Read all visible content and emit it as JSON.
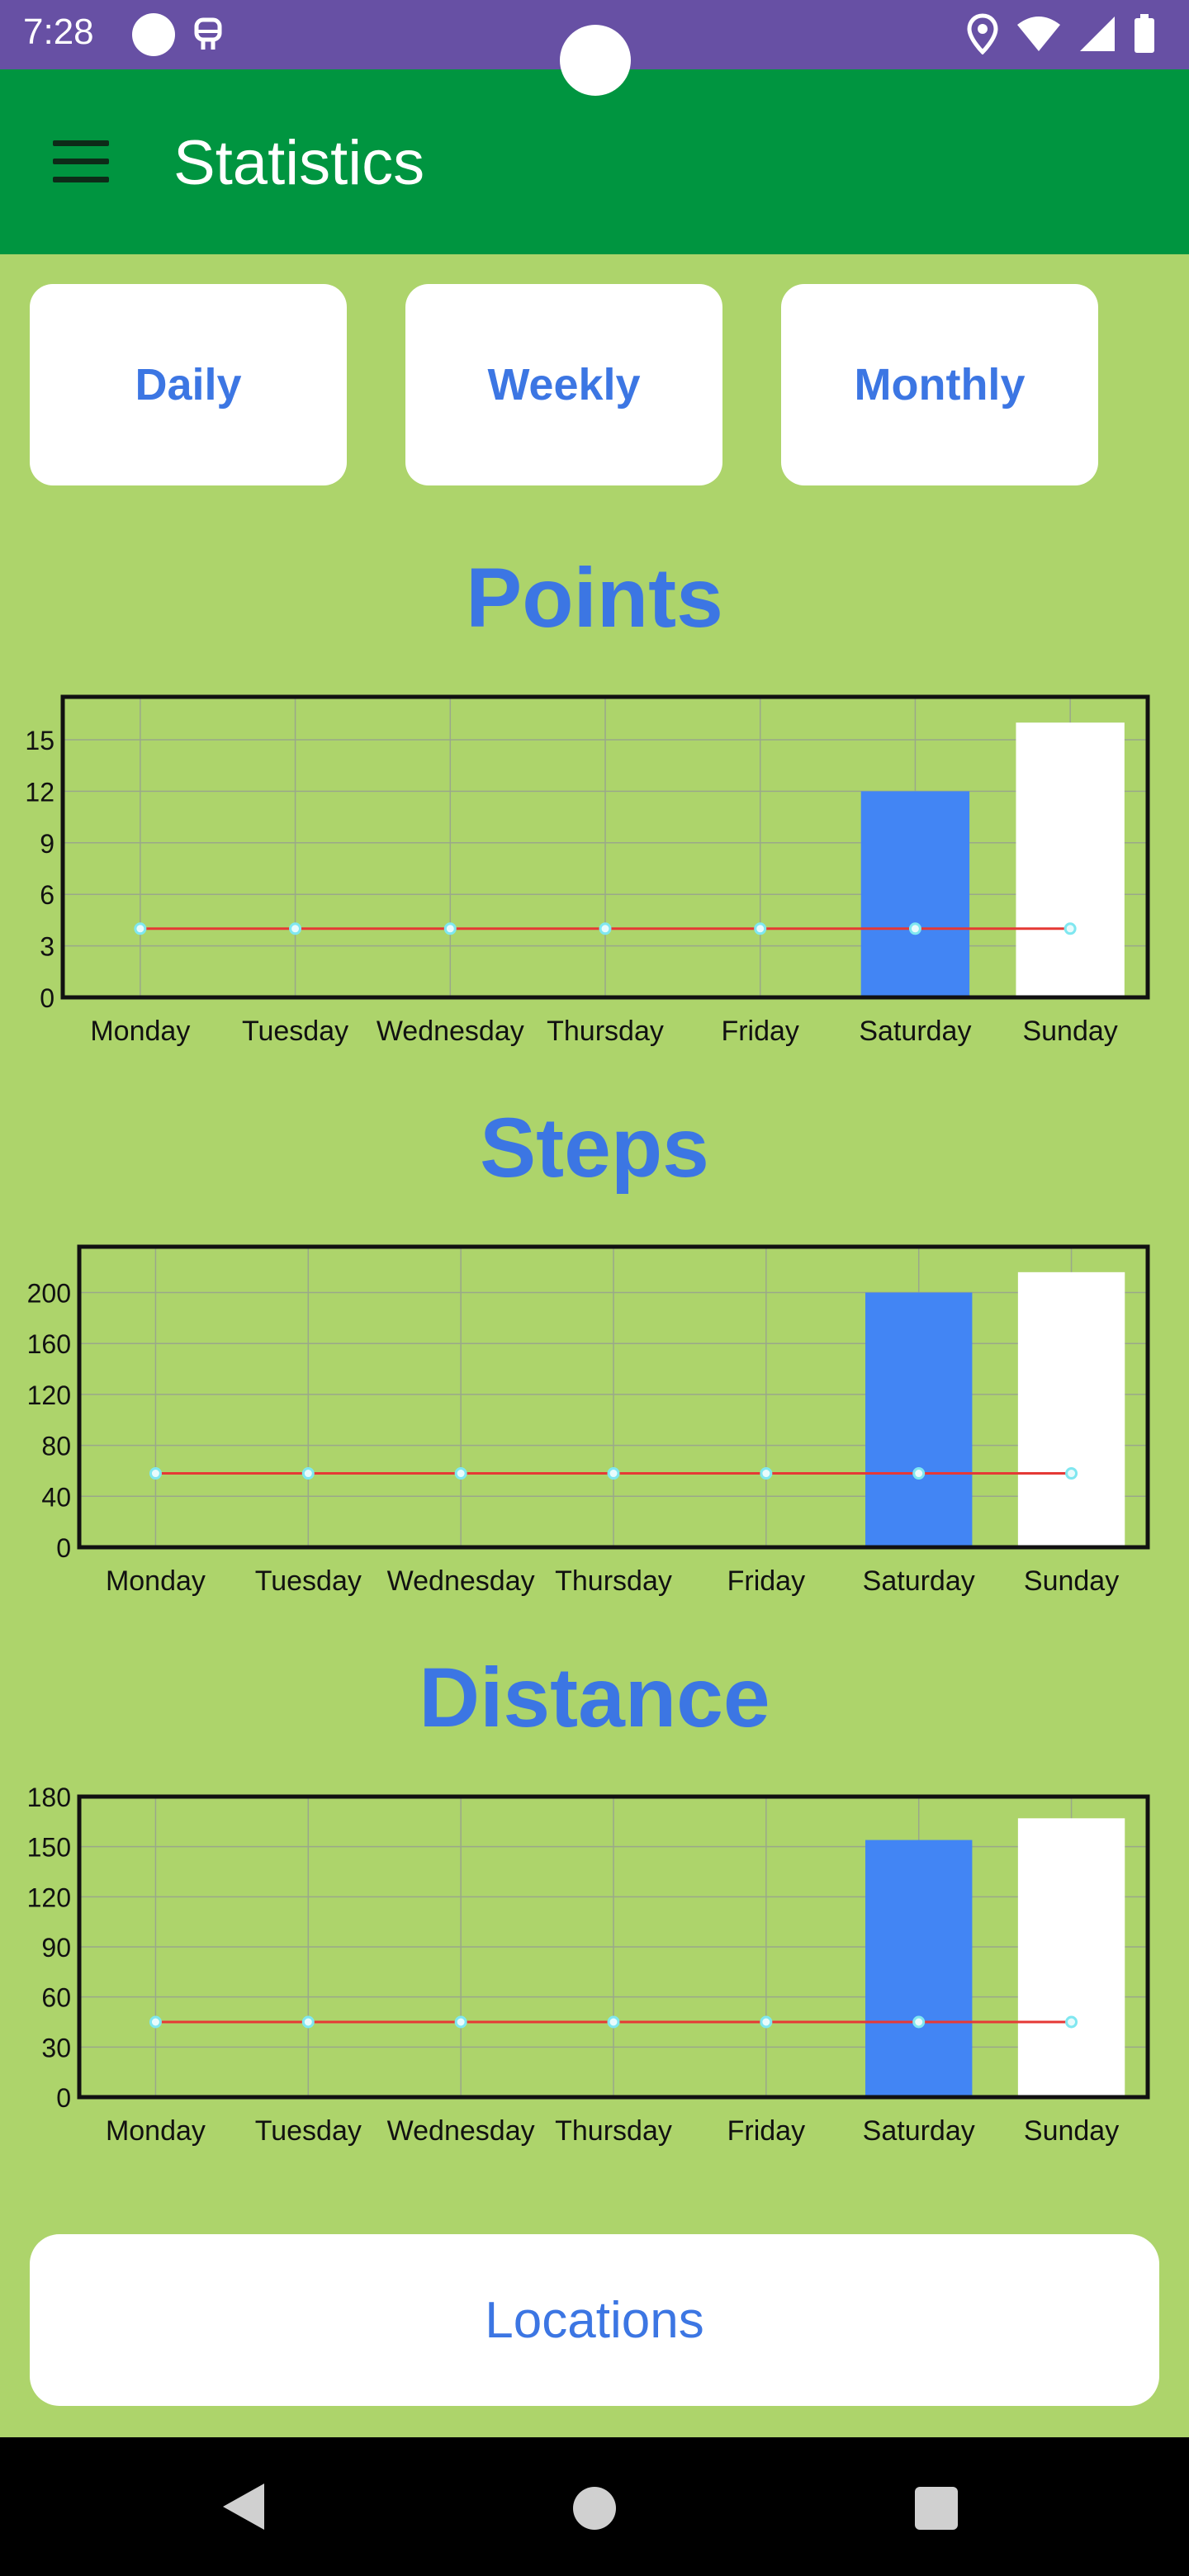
{
  "status_bar": {
    "time": "7:28",
    "left_icons": [
      "dot-icon",
      "robot-icon"
    ],
    "right_icons": [
      "location-icon",
      "wifi-icon",
      "signal-icon",
      "battery-icon"
    ]
  },
  "app_bar": {
    "title": "Statistics",
    "menu_icon": "hamburger-menu-icon"
  },
  "range_buttons": [
    {
      "id": "daily",
      "label": "Daily"
    },
    {
      "id": "weekly",
      "label": "Weekly"
    },
    {
      "id": "monthly",
      "label": "Monthly"
    }
  ],
  "chart_data": [
    {
      "type": "bar",
      "title": "Points",
      "categories": [
        "Monday",
        "Tuesday",
        "Wednesday",
        "Thursday",
        "Friday",
        "Saturday",
        "Sunday"
      ],
      "yticks": [
        0,
        3,
        6,
        9,
        12,
        15
      ],
      "ylim": [
        0,
        17.5
      ],
      "series": [
        {
          "kind": "bar",
          "values": [
            0,
            0,
            0,
            0,
            0,
            12,
            16
          ],
          "colors": [
            "#4285f4",
            "#4285f4",
            "#4285f4",
            "#4285f4",
            "#4285f4",
            "#4285f4",
            "#ffffff"
          ]
        },
        {
          "kind": "line",
          "values": [
            4,
            4,
            4,
            4,
            4,
            4,
            4
          ],
          "color": "#e53935"
        }
      ],
      "grid": true
    },
    {
      "type": "bar",
      "title": "Steps",
      "categories": [
        "Monday",
        "Tuesday",
        "Wednesday",
        "Thursday",
        "Friday",
        "Saturday",
        "Sunday"
      ],
      "yticks": [
        0,
        40,
        80,
        120,
        160,
        200
      ],
      "ylim": [
        0,
        236
      ],
      "series": [
        {
          "kind": "bar",
          "values": [
            0,
            0,
            0,
            0,
            0,
            200,
            216
          ],
          "colors": [
            "#4285f4",
            "#4285f4",
            "#4285f4",
            "#4285f4",
            "#4285f4",
            "#4285f4",
            "#ffffff"
          ]
        },
        {
          "kind": "line",
          "values": [
            58,
            58,
            58,
            58,
            58,
            58,
            58
          ],
          "color": "#e53935"
        }
      ],
      "grid": true
    },
    {
      "type": "bar",
      "title": "Distance",
      "categories": [
        "Monday",
        "Tuesday",
        "Wednesday",
        "Thursday",
        "Friday",
        "Saturday",
        "Sunday"
      ],
      "yticks": [
        0,
        30,
        60,
        90,
        120,
        150,
        180
      ],
      "ylim": [
        0,
        180
      ],
      "series": [
        {
          "kind": "bar",
          "values": [
            0,
            0,
            0,
            0,
            0,
            154,
            167
          ],
          "colors": [
            "#4285f4",
            "#4285f4",
            "#4285f4",
            "#4285f4",
            "#4285f4",
            "#4285f4",
            "#ffffff"
          ]
        },
        {
          "kind": "line",
          "values": [
            45,
            45,
            45,
            45,
            45,
            45,
            45
          ],
          "color": "#e53935"
        }
      ],
      "grid": true
    }
  ],
  "locations_button": {
    "label": "Locations"
  },
  "nav_bar": {
    "icons": [
      "back-icon",
      "home-icon",
      "recents-icon"
    ]
  },
  "colors": {
    "background": "#add46b",
    "status_bar": "#6750a4",
    "app_bar": "#009540",
    "accent_text": "#3c76e3",
    "bar_blue": "#4285f4",
    "line_red": "#e53935",
    "point_cyan": "#7fe7f0"
  }
}
